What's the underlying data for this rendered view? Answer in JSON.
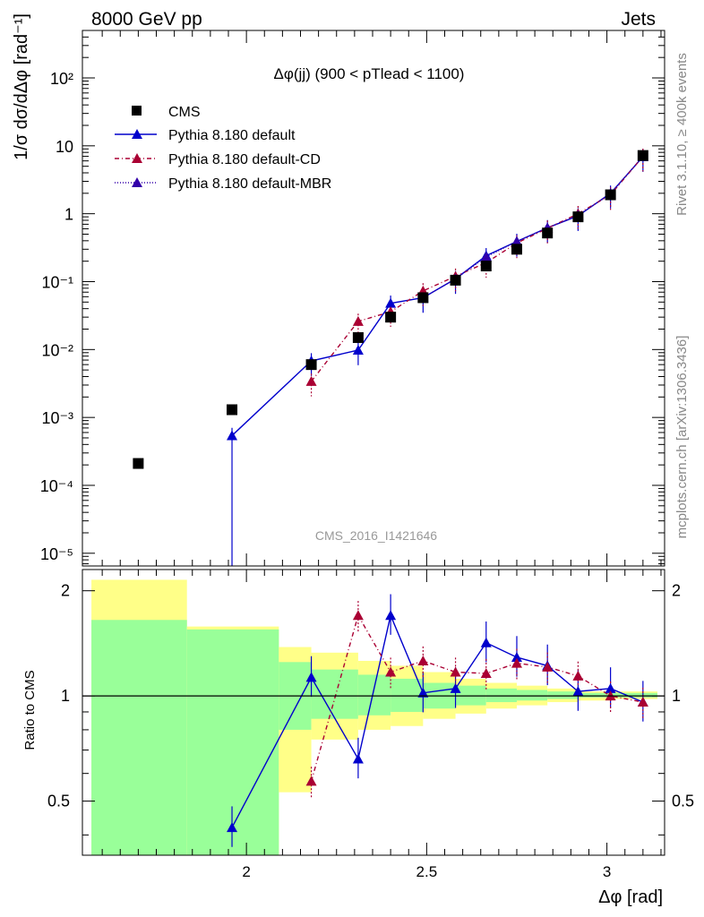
{
  "header": {
    "left": "8000 GeV pp",
    "right": "Jets"
  },
  "side_labels": {
    "rivet": "Rivet 3.1.10, ≥ 400k events",
    "mcplots": "mcplots.cern.ch [arXiv:1306.3436]"
  },
  "watermark": "CMS_2016_I1421646",
  "colors": {
    "cms": "#000000",
    "default": "#0000cc",
    "cd": "#aa0033",
    "mbr": "#3300aa",
    "band_inner": "#99ff99",
    "band_outer": "#ffff88"
  },
  "chart_data": {
    "type": "scatter",
    "title": "Δφ(jj) (900 < pTlead < 1100)",
    "xlabel": "Δφ [rad]",
    "ylabel_top": "1/σ dσ/dΔφ [rad⁻¹]",
    "ylabel_ratio": "Ratio to CMS",
    "xlim": [
      1.545,
      3.16
    ],
    "ylim_log": [
      6.5e-06,
      500
    ],
    "ratio_ylim": [
      0.35,
      2.3
    ],
    "x_ticks": [
      "2",
      "2.5",
      "3"
    ],
    "y_ticks": [
      "10⁻⁵",
      "10⁻⁴",
      "10⁻³",
      "10⁻²",
      "10⁻¹",
      "1",
      "10",
      "10²"
    ],
    "ratio_ticks": [
      "0.5",
      "1",
      "2"
    ],
    "legend": [
      "CMS",
      "Pythia 8.180 default",
      "Pythia 8.180 default-CD",
      "Pythia 8.180 default-MBR"
    ],
    "bins_x": [
      1.7,
      1.96,
      2.18,
      2.31,
      2.4,
      2.49,
      2.58,
      2.665,
      2.75,
      2.835,
      2.92,
      3.01,
      3.1
    ],
    "cms": [
      0.00021,
      0.0013,
      0.006,
      0.015,
      0.03,
      0.058,
      0.105,
      0.17,
      0.3,
      0.52,
      0.9,
      1.9,
      7.2
    ],
    "series": [
      {
        "name": "Pythia 8.180 default",
        "x": [
          1.96,
          2.18,
          2.31,
          2.4,
          2.49,
          2.58,
          2.665,
          2.75,
          2.835,
          2.92,
          3.01,
          3.1
        ],
        "values": [
          0.00054,
          0.0068,
          0.0098,
          0.048,
          0.058,
          0.11,
          0.24,
          0.39,
          0.62,
          0.93,
          2.0,
          6.9
        ]
      },
      {
        "name": "Pythia 8.180 default-CD",
        "x": [
          2.18,
          2.31,
          2.4,
          2.49,
          2.58,
          2.665,
          2.75,
          2.835,
          2.92,
          3.01,
          3.1
        ],
        "values": [
          0.0034,
          0.026,
          0.036,
          0.073,
          0.12,
          0.19,
          0.37,
          0.61,
          1.0,
          1.9,
          7.0
        ]
      },
      {
        "name": "Pythia 8.180 default-MBR",
        "x": [
          2.49,
          2.58,
          2.665,
          2.75,
          2.835,
          2.92,
          3.01,
          3.1
        ],
        "values": [
          0.058,
          0.11,
          0.23,
          0.39,
          0.62,
          0.95,
          1.95,
          7.0
        ]
      }
    ],
    "ratio_default": [
      0.42,
      1.13,
      0.66,
      1.7,
      1.02,
      1.05,
      1.42,
      1.29,
      1.22,
      1.03,
      1.05,
      0.96
    ],
    "ratio_cd": [
      0.57,
      1.7,
      1.17,
      1.26,
      1.17,
      1.16,
      1.24,
      1.21,
      1.14,
      1.0,
      0.96
    ],
    "bands": {
      "edges": [
        1.57,
        1.835,
        2.09,
        2.18,
        2.31,
        2.4,
        2.49,
        2.58,
        2.665,
        2.75,
        2.835,
        2.92,
        3.01,
        3.14
      ],
      "inner_lo": [
        0.35,
        0.35,
        0.8,
        0.86,
        0.88,
        0.9,
        0.92,
        0.94,
        0.96,
        0.97,
        0.98,
        0.99,
        0.99
      ],
      "inner_hi": [
        1.65,
        1.55,
        1.25,
        1.19,
        1.15,
        1.12,
        1.09,
        1.07,
        1.05,
        1.04,
        1.03,
        1.02,
        1.02
      ],
      "outer_lo": [
        0.35,
        0.35,
        0.53,
        0.75,
        0.8,
        0.82,
        0.86,
        0.89,
        0.92,
        0.94,
        0.96,
        0.97,
        0.98
      ],
      "outer_hi": [
        2.15,
        1.58,
        1.38,
        1.33,
        1.26,
        1.22,
        1.17,
        1.12,
        1.09,
        1.07,
        1.05,
        1.03,
        1.03
      ]
    }
  }
}
